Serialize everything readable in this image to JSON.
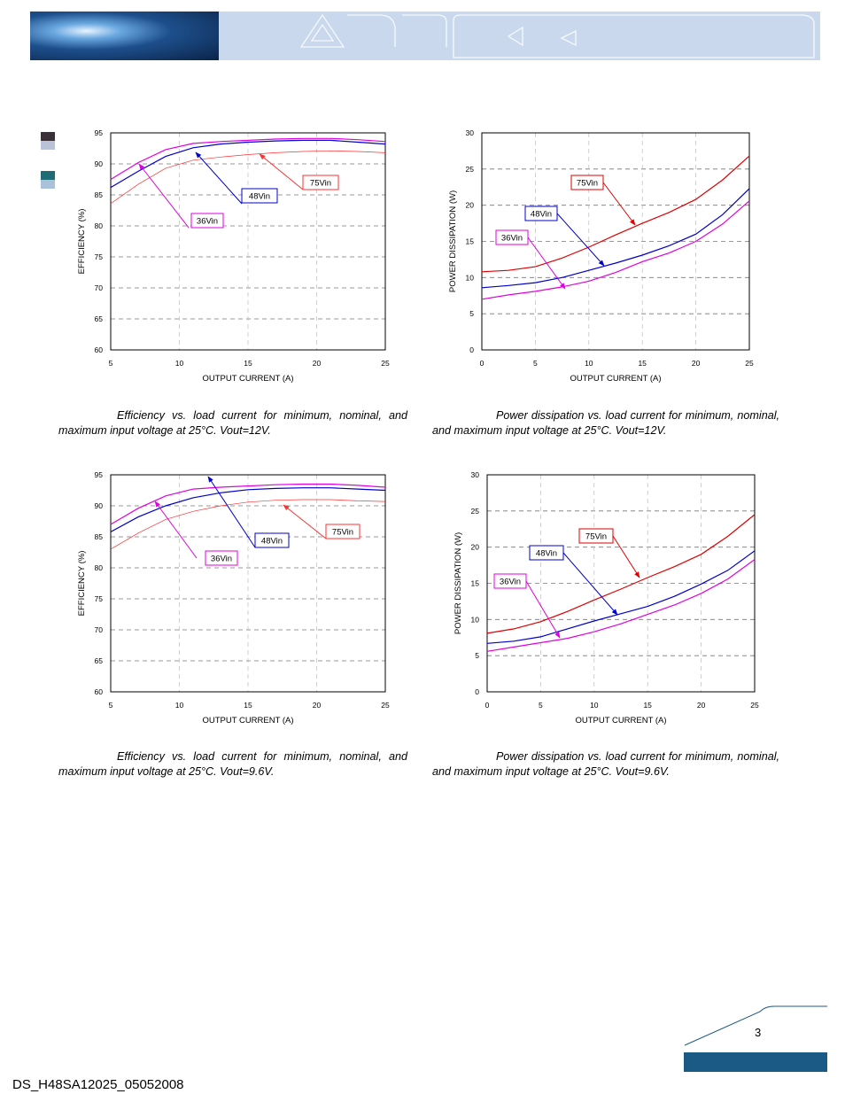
{
  "header": {
    "brand_colors": {
      "banner_light": "#c9d8ec",
      "banner_photo": "#1d4f8c"
    }
  },
  "side_swatches": [
    {
      "color": "#3a3037"
    },
    {
      "color": "#b9c2d6"
    },
    {
      "color": "#1f6b76"
    },
    {
      "color": "#a9c2da"
    }
  ],
  "chart_data": [
    {
      "type": "line",
      "xlabel": "OUTPUT CURRENT (A)",
      "ylabel": "EFFICIENCY (%)",
      "xlim": [
        5,
        25
      ],
      "ylim": [
        60,
        95
      ],
      "xticks": [
        5,
        10,
        15,
        20,
        25
      ],
      "yticks": [
        60,
        65,
        70,
        75,
        80,
        85,
        90,
        95
      ],
      "grid": "dashed",
      "series": [
        {
          "name": "36Vin",
          "color": "#e000e0",
          "x": [
            5,
            7,
            9,
            11,
            13,
            15,
            17,
            19,
            21,
            23,
            25
          ],
          "y": [
            87.5,
            90.2,
            92.3,
            93.3,
            93.6,
            93.8,
            94.0,
            94.1,
            94.1,
            93.9,
            93.6
          ]
        },
        {
          "name": "48Vin",
          "color": "#0000cc",
          "x": [
            5,
            7,
            9,
            11,
            13,
            15,
            17,
            19,
            21,
            23,
            25
          ],
          "y": [
            86.2,
            88.8,
            91.2,
            92.6,
            93.2,
            93.5,
            93.7,
            93.8,
            93.8,
            93.5,
            93.2
          ]
        },
        {
          "name": "75Vin",
          "color": "#ff3030",
          "x": [
            5,
            7,
            9,
            11,
            13,
            15,
            17,
            19,
            21,
            23,
            25
          ],
          "y": [
            83.6,
            86.7,
            89.3,
            90.6,
            91.1,
            91.5,
            91.8,
            92.0,
            92.1,
            92.0,
            91.8
          ]
        }
      ],
      "callouts": [
        {
          "series": "36Vin",
          "label": "36Vin"
        },
        {
          "series": "48Vin",
          "label": "48Vin"
        },
        {
          "series": "75Vin",
          "label": "75Vin"
        }
      ],
      "caption": "Efficiency vs. load current for minimum, nominal, and maximum input voltage at 25°C. Vout=12V."
    },
    {
      "type": "line",
      "xlabel": "OUTPUT CURRENT (A)",
      "ylabel": "POWER DISSIPATION (W)",
      "xlim": [
        0,
        25
      ],
      "ylim": [
        0,
        30
      ],
      "xticks": [
        0,
        5,
        10,
        15,
        20,
        25
      ],
      "yticks": [
        0,
        5,
        10,
        15,
        20,
        25,
        30
      ],
      "grid": "dashed",
      "series": [
        {
          "name": "36Vin",
          "color": "#e000e0",
          "x": [
            0,
            2.5,
            5,
            7.5,
            10,
            12.5,
            15,
            17.5,
            20,
            22.5,
            25
          ],
          "y": [
            7.0,
            7.6,
            8.1,
            8.7,
            9.5,
            10.7,
            12.2,
            13.4,
            15.0,
            17.4,
            20.6
          ]
        },
        {
          "name": "48Vin",
          "color": "#0000cc",
          "x": [
            0,
            2.5,
            5,
            7.5,
            10,
            12.5,
            15,
            17.5,
            20,
            22.5,
            25
          ],
          "y": [
            8.6,
            8.9,
            9.3,
            10.0,
            11.0,
            12.0,
            13.1,
            14.4,
            16.0,
            18.7,
            22.3
          ]
        },
        {
          "name": "75Vin",
          "color": "#e00000",
          "x": [
            0,
            2.5,
            5,
            7.5,
            10,
            12.5,
            15,
            17.5,
            20,
            22.5,
            25
          ],
          "y": [
            10.8,
            11.0,
            11.5,
            12.7,
            14.2,
            15.9,
            17.5,
            19.0,
            20.8,
            23.5,
            26.8
          ]
        }
      ],
      "callouts": [
        {
          "series": "36Vin",
          "label": "36Vin"
        },
        {
          "series": "48Vin",
          "label": "48Vin"
        },
        {
          "series": "75Vin",
          "label": "75Vin"
        }
      ],
      "caption": "Power dissipation vs. load current for minimum, nominal, and maximum input voltage at 25°C. Vout=12V."
    },
    {
      "type": "line",
      "xlabel": "OUTPUT CURRENT (A)",
      "ylabel": "EFFICIENCY (%)",
      "xlim": [
        5,
        25
      ],
      "ylim": [
        60,
        95
      ],
      "xticks": [
        5,
        10,
        15,
        20,
        25
      ],
      "yticks": [
        60,
        65,
        70,
        75,
        80,
        85,
        90,
        95
      ],
      "grid": "dashed",
      "series": [
        {
          "name": "36Vin",
          "color": "#e000e0",
          "x": [
            5,
            7,
            9,
            11,
            13,
            15,
            17,
            19,
            21,
            23,
            25
          ],
          "y": [
            87.0,
            89.6,
            91.6,
            92.7,
            93.0,
            93.2,
            93.4,
            93.5,
            93.5,
            93.3,
            93.0
          ]
        },
        {
          "name": "48Vin",
          "color": "#0000cc",
          "x": [
            5,
            7,
            9,
            11,
            13,
            15,
            17,
            19,
            21,
            23,
            25
          ],
          "y": [
            85.8,
            88.2,
            90.0,
            91.3,
            92.1,
            92.6,
            92.8,
            92.9,
            92.9,
            92.7,
            92.5
          ]
        },
        {
          "name": "75Vin",
          "color": "#ff3030",
          "x": [
            5,
            7,
            9,
            11,
            13,
            15,
            17,
            19,
            21,
            23,
            25
          ],
          "y": [
            83.0,
            85.6,
            87.8,
            89.1,
            90.0,
            90.6,
            90.9,
            91.0,
            91.0,
            90.8,
            90.7
          ]
        }
      ],
      "callouts": [
        {
          "series": "36Vin",
          "label": "36Vin"
        },
        {
          "series": "48Vin",
          "label": "48Vin"
        },
        {
          "series": "75Vin",
          "label": "75Vin"
        }
      ],
      "caption": "Efficiency vs. load current for minimum, nominal, and maximum input voltage at 25°C. Vout=9.6V."
    },
    {
      "type": "line",
      "xlabel": "OUTPUT CURRENT (A)",
      "ylabel": "POWER DISSIPATION (W)",
      "xlim": [
        0,
        25
      ],
      "ylim": [
        0,
        30
      ],
      "xticks": [
        0,
        5,
        10,
        15,
        20,
        25
      ],
      "yticks": [
        0,
        5,
        10,
        15,
        20,
        25,
        30
      ],
      "grid": "dashed",
      "series": [
        {
          "name": "36Vin",
          "color": "#e000e0",
          "x": [
            0,
            2.5,
            5,
            7.5,
            10,
            12.5,
            15,
            17.5,
            20,
            22.5,
            25
          ],
          "y": [
            5.6,
            6.2,
            6.8,
            7.4,
            8.3,
            9.4,
            10.7,
            12.0,
            13.6,
            15.6,
            18.3
          ]
        },
        {
          "name": "48Vin",
          "color": "#0000cc",
          "x": [
            0,
            2.5,
            5,
            7.5,
            10,
            12.5,
            15,
            17.5,
            20,
            22.5,
            25
          ],
          "y": [
            6.7,
            7.0,
            7.6,
            8.7,
            9.8,
            10.8,
            11.8,
            13.2,
            14.9,
            16.8,
            19.5
          ]
        },
        {
          "name": "75Vin",
          "color": "#e00000",
          "x": [
            0,
            2.5,
            5,
            7.5,
            10,
            12.5,
            15,
            17.5,
            20,
            22.5,
            25
          ],
          "y": [
            8.1,
            8.7,
            9.7,
            11.1,
            12.7,
            14.2,
            15.8,
            17.3,
            19.0,
            21.5,
            24.5
          ]
        }
      ],
      "callouts": [
        {
          "series": "36Vin",
          "label": "36Vin"
        },
        {
          "series": "48Vin",
          "label": "48Vin"
        },
        {
          "series": "75Vin",
          "label": "75Vin"
        }
      ],
      "caption": "Power dissipation vs. load current for minimum, nominal, and maximum input voltage at 25°C. Vout=9.6V."
    }
  ],
  "footer": {
    "page_number": "3",
    "document_id": "DS_H48SA12025_05052008",
    "bar_color": "#1c5a86"
  }
}
